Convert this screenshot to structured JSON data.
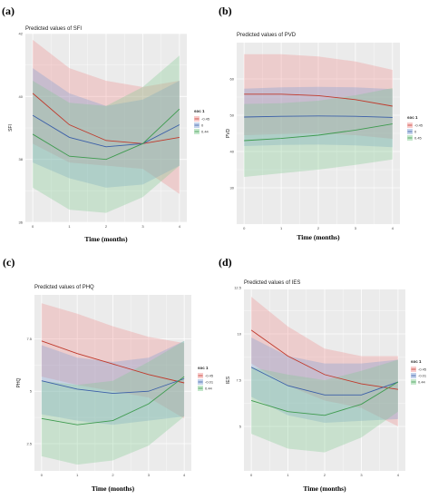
{
  "colors": {
    "panel_bg": "#ebebeb",
    "grid": "#ffffff",
    "series": [
      "#f08b8b",
      "#7a9cd3",
      "#7fc98f"
    ],
    "series_line": [
      "#c0392b",
      "#3b5fa8",
      "#3e9b4f"
    ]
  },
  "chart_data": [
    {
      "type": "line",
      "panel_label": "(a)",
      "title": "Predicted values of SFI",
      "xlabel": "Time (months)",
      "ylabel": "SFI",
      "x": [
        0,
        1,
        2,
        3,
        4
      ],
      "xticks": [
        "0",
        "1",
        "2",
        "3",
        "4"
      ],
      "ylim": [
        36,
        42
      ],
      "yticks": [
        36,
        38,
        40,
        42
      ],
      "legend_title": "soc 1",
      "series": [
        {
          "name": "-0.45",
          "values": [
            40.1,
            39.1,
            38.6,
            38.5,
            38.7
          ],
          "lower": [
            38.5,
            37.9,
            37.8,
            37.7,
            36.9
          ],
          "upper": [
            41.8,
            40.9,
            40.5,
            40.3,
            40.5
          ]
        },
        {
          "name": "0",
          "values": [
            39.4,
            38.7,
            38.4,
            38.5,
            39.1
          ],
          "lower": [
            37.9,
            37.4,
            37.1,
            37.2,
            37.8
          ],
          "upper": [
            40.9,
            40.1,
            39.7,
            39.9,
            40.5
          ]
        },
        {
          "name": "0.44",
          "values": [
            38.8,
            38.1,
            38.0,
            38.5,
            39.6
          ],
          "lower": [
            37.1,
            36.4,
            36.3,
            36.8,
            37.8
          ],
          "upper": [
            40.5,
            39.8,
            39.7,
            40.3,
            41.3
          ]
        }
      ]
    },
    {
      "type": "line",
      "panel_label": "(b)",
      "title": "Predicted values of PVD",
      "xlabel": "Time (months)",
      "ylabel": "PVD",
      "x": [
        0,
        1,
        2,
        3,
        4
      ],
      "xticks": [
        "0",
        "1",
        "2",
        "3",
        "4"
      ],
      "ylim": [
        20,
        70
      ],
      "yticks": [
        30,
        40,
        50,
        60
      ],
      "legend_title": "soc 1",
      "series": [
        {
          "name": "-0.45",
          "values": [
            55.8,
            55.8,
            55.4,
            54.3,
            52.5
          ],
          "lower": [
            44.5,
            44.8,
            45.0,
            44.5,
            43.5
          ],
          "upper": [
            66.8,
            66.8,
            66.2,
            64.8,
            62.5
          ]
        },
        {
          "name": "0",
          "values": [
            49.5,
            49.7,
            49.8,
            49.7,
            49.4
          ],
          "lower": [
            41.5,
            41.8,
            41.9,
            41.7,
            41.2
          ],
          "upper": [
            57.3,
            57.7,
            57.8,
            57.7,
            57.2
          ]
        },
        {
          "name": "0.45",
          "values": [
            43.0,
            43.6,
            44.5,
            45.9,
            47.6
          ],
          "lower": [
            33.0,
            34.0,
            35.0,
            36.3,
            37.8
          ],
          "upper": [
            53.1,
            53.3,
            54.0,
            55.5,
            57.5
          ]
        }
      ]
    },
    {
      "type": "line",
      "panel_label": "(c)",
      "title": "Predicted values of PHQ",
      "xlabel": "Time (months)",
      "ylabel": "PHQ",
      "x": [
        0,
        1,
        2,
        3,
        4
      ],
      "xticks": [
        "0",
        "1",
        "2",
        "3",
        "4"
      ],
      "ylim": [
        1.2,
        9.6
      ],
      "yticks": [
        2.5,
        5.0,
        7.5
      ],
      "legend_title": "soc 1",
      "series": [
        {
          "name": "-0.45",
          "values": [
            7.4,
            6.8,
            6.3,
            5.8,
            5.4
          ],
          "lower": [
            5.7,
            5.3,
            5.0,
            4.7,
            3.7
          ],
          "upper": [
            9.2,
            8.7,
            8.1,
            7.6,
            7.3
          ]
        },
        {
          "name": "-0.01",
          "values": [
            5.5,
            5.1,
            4.9,
            5.0,
            5.6
          ],
          "lower": [
            3.9,
            3.6,
            3.4,
            3.6,
            3.8
          ],
          "upper": [
            7.2,
            6.6,
            6.4,
            6.6,
            7.4
          ]
        },
        {
          "name": "0.44",
          "values": [
            3.7,
            3.4,
            3.6,
            4.4,
            5.7
          ],
          "lower": [
            1.9,
            1.5,
            1.7,
            2.4,
            3.8
          ],
          "upper": [
            5.5,
            5.3,
            5.5,
            6.4,
            7.4
          ]
        }
      ]
    },
    {
      "type": "line",
      "panel_label": "(d)",
      "title": "Predicted values of IES",
      "xlabel": "Time (months)",
      "ylabel": "IES",
      "x": [
        0,
        1,
        2,
        3,
        4
      ],
      "xticks": [
        "0",
        "1",
        "2",
        "3",
        "4"
      ],
      "ylim": [
        2.6,
        12.4
      ],
      "yticks": [
        5.0,
        7.5,
        10.0,
        12.5
      ],
      "legend_title": "soc 1",
      "series": [
        {
          "name": "-0.45",
          "values": [
            10.2,
            8.8,
            7.8,
            7.3,
            7.0
          ],
          "lower": [
            8.4,
            7.2,
            6.4,
            6.0,
            5.0
          ],
          "upper": [
            12.0,
            10.4,
            9.2,
            8.8,
            8.8
          ]
        },
        {
          "name": "-0.01",
          "values": [
            8.2,
            7.2,
            6.7,
            6.7,
            7.4
          ],
          "lower": [
            6.6,
            5.6,
            5.2,
            5.3,
            5.4
          ],
          "upper": [
            9.8,
            8.8,
            8.4,
            8.4,
            8.6
          ]
        },
        {
          "name": "0.44",
          "values": [
            6.4,
            5.8,
            5.6,
            6.2,
            7.4
          ],
          "lower": [
            4.6,
            3.8,
            3.6,
            4.4,
            5.8
          ],
          "upper": [
            8.2,
            7.8,
            7.5,
            8.0,
            8.6
          ]
        }
      ]
    }
  ]
}
